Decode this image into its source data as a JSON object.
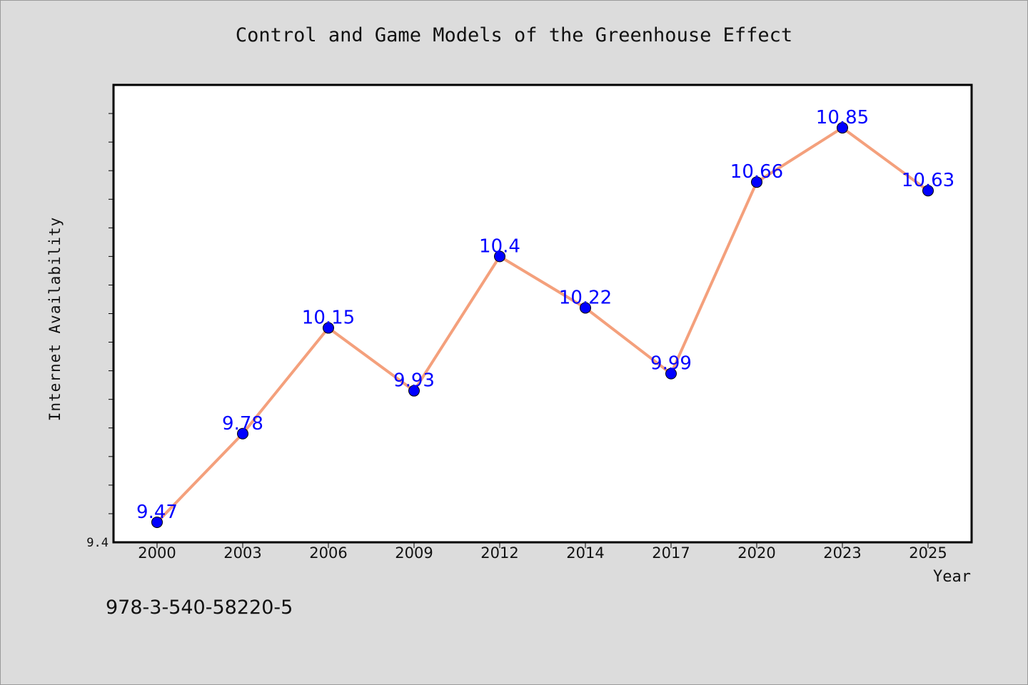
{
  "chart_data": {
    "type": "line",
    "title": "Control and Game Models of the Greenhouse Effect",
    "xlabel": "Year",
    "ylabel": "Internet Availability",
    "categories": [
      "2000",
      "2003",
      "2006",
      "2009",
      "2012",
      "2014",
      "2017",
      "2020",
      "2023",
      "2025"
    ],
    "series": [
      {
        "values": [
          9.47,
          9.78,
          10.15,
          9.93,
          10.4,
          10.22,
          9.99,
          10.66,
          10.85,
          10.63
        ]
      }
    ],
    "ylim": [
      9.4,
      11.0
    ],
    "y_tick_labels": [
      "9.4"
    ],
    "grid": false,
    "line_color": "#f4a07c",
    "marker_color": "#0000ff",
    "label_color": "#0000ff"
  },
  "footer": {
    "isbn": "978-3-540-58220-5"
  }
}
